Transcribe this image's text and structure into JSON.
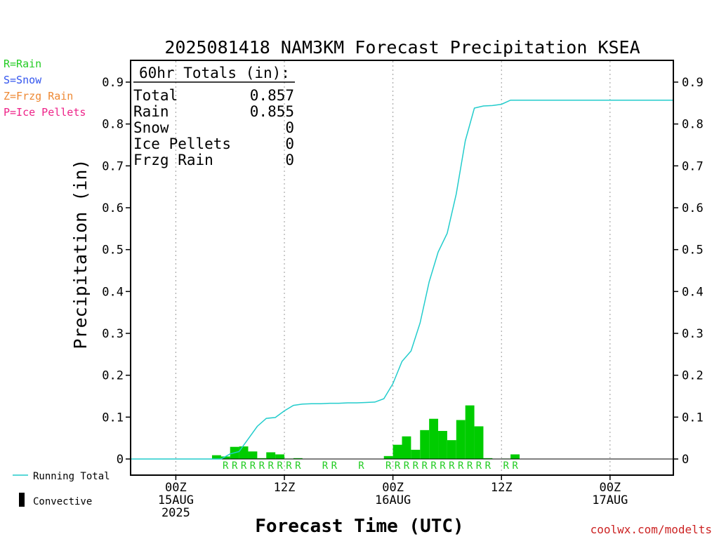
{
  "chart_data": {
    "type": "bar",
    "title": "2025081418 NAM3KM Forecast Precipitation KSEA",
    "xlabel": "Forecast Time (UTC)",
    "ylabel": "Precipitation (in)",
    "ylim": [
      0,
      0.9
    ],
    "y_ticks": [
      "0",
      "0.1",
      "0.2",
      "0.3",
      "0.4",
      "0.5",
      "0.6",
      "0.7",
      "0.8",
      "0.9"
    ],
    "x_tick_labels": [
      {
        "hour": 0,
        "lines": [
          "00Z",
          "15AUG",
          "2025"
        ]
      },
      {
        "hour": 12,
        "lines": [
          "12Z"
        ]
      },
      {
        "hour": 24,
        "lines": [
          "00Z",
          "16AUG"
        ]
      },
      {
        "hour": 36,
        "lines": [
          "12Z"
        ]
      },
      {
        "hour": 48,
        "lines": [
          "00Z",
          "17AUG"
        ]
      }
    ],
    "x_range_hours": [
      -5,
      55
    ],
    "forecast_start_hour": -5,
    "forecast_end_hour": 55,
    "bar_hours": [
      4.5,
      5.5,
      6.5,
      7.5,
      8.5,
      9.5,
      10.5,
      11.5,
      12.5,
      13.5,
      14.5,
      15.5,
      16.5,
      17.5,
      18.5,
      19.5,
      20.5,
      21.5,
      22.5,
      23.5,
      24.5,
      25.5,
      26.5,
      27.5,
      28.5,
      29.5,
      30.5,
      31.5,
      32.5,
      33.5,
      34.5,
      35.5,
      36.5,
      37.5,
      38.5
    ],
    "hourly_precip": [
      0.009,
      0.006,
      0.029,
      0.03,
      0.018,
      0.002,
      0.016,
      0.011,
      0.001,
      0.002,
      0.0,
      0.0,
      0.0,
      0.0,
      0.0,
      0.0,
      0.0,
      0.0,
      0.0,
      0.007,
      0.034,
      0.054,
      0.022,
      0.069,
      0.096,
      0.067,
      0.045,
      0.093,
      0.128,
      0.078,
      0.002,
      0.0,
      0.001,
      0.011,
      0.0
    ],
    "running_total": {
      "hours": [
        -5,
        5,
        6,
        7,
        8,
        9,
        10,
        11,
        12,
        13,
        14,
        15,
        16,
        17,
        18,
        19,
        20,
        21,
        22,
        23,
        24,
        25,
        26,
        27,
        28,
        29,
        30,
        31,
        32,
        33,
        34,
        35,
        36,
        37,
        38,
        55
      ],
      "values": [
        0,
        0,
        0.012,
        0.018,
        0.048,
        0.078,
        0.097,
        0.099,
        0.115,
        0.128,
        0.131,
        0.132,
        0.132,
        0.133,
        0.133,
        0.134,
        0.134,
        0.135,
        0.136,
        0.144,
        0.18,
        0.233,
        0.258,
        0.325,
        0.423,
        0.494,
        0.539,
        0.633,
        0.76,
        0.838,
        0.843,
        0.844,
        0.847,
        0.857,
        0.857,
        0.857
      ]
    },
    "precip_type_labels": [
      {
        "hour": 5.5,
        "type": "R"
      },
      {
        "hour": 6.5,
        "type": "R"
      },
      {
        "hour": 7.5,
        "type": "R"
      },
      {
        "hour": 8.5,
        "type": "R"
      },
      {
        "hour": 9.5,
        "type": "R"
      },
      {
        "hour": 10.5,
        "type": "R"
      },
      {
        "hour": 11.5,
        "type": "R"
      },
      {
        "hour": 12.5,
        "type": "R"
      },
      {
        "hour": 13.5,
        "type": "R"
      },
      {
        "hour": 16.5,
        "type": "R"
      },
      {
        "hour": 17.5,
        "type": "R"
      },
      {
        "hour": 20.5,
        "type": "R"
      },
      {
        "hour": 23.5,
        "type": "R"
      },
      {
        "hour": 24.5,
        "type": "R"
      },
      {
        "hour": 25.5,
        "type": "R"
      },
      {
        "hour": 26.5,
        "type": "R"
      },
      {
        "hour": 27.5,
        "type": "R"
      },
      {
        "hour": 28.5,
        "type": "R"
      },
      {
        "hour": 29.5,
        "type": "R"
      },
      {
        "hour": 30.5,
        "type": "R"
      },
      {
        "hour": 31.5,
        "type": "R"
      },
      {
        "hour": 32.5,
        "type": "R"
      },
      {
        "hour": 33.5,
        "type": "R"
      },
      {
        "hour": 34.5,
        "type": "R"
      },
      {
        "hour": 36.5,
        "type": "R"
      },
      {
        "hour": 37.5,
        "type": "R"
      }
    ],
    "type_legend": [
      {
        "text": "R=Rain",
        "color": "#22cc22"
      },
      {
        "text": "S=Snow",
        "color": "#3355ee"
      },
      {
        "text": "Z=Frzg Rain",
        "color": "#ee8833"
      },
      {
        "text": "P=Ice Pellets",
        "color": "#ee2288"
      }
    ],
    "totals_box": {
      "header": "60hr Totals (in):",
      "rows": [
        {
          "label": "Total",
          "value": "0.857"
        },
        {
          "label": "Rain",
          "value": "0.855"
        },
        {
          "label": "Snow",
          "value": "0"
        },
        {
          "label": "Ice Pellets",
          "value": "0"
        },
        {
          "label": "Frzg Rain",
          "value": "0"
        }
      ]
    },
    "bottom_legend": {
      "running_total_label": "Running Total",
      "convective_label": "Convective"
    },
    "colors": {
      "bar": "#00cc00",
      "running_total": "#22cccc",
      "rain_label": "#22cc22",
      "credit": "#cc2222"
    },
    "credit": "coolwx.com/modelts"
  }
}
